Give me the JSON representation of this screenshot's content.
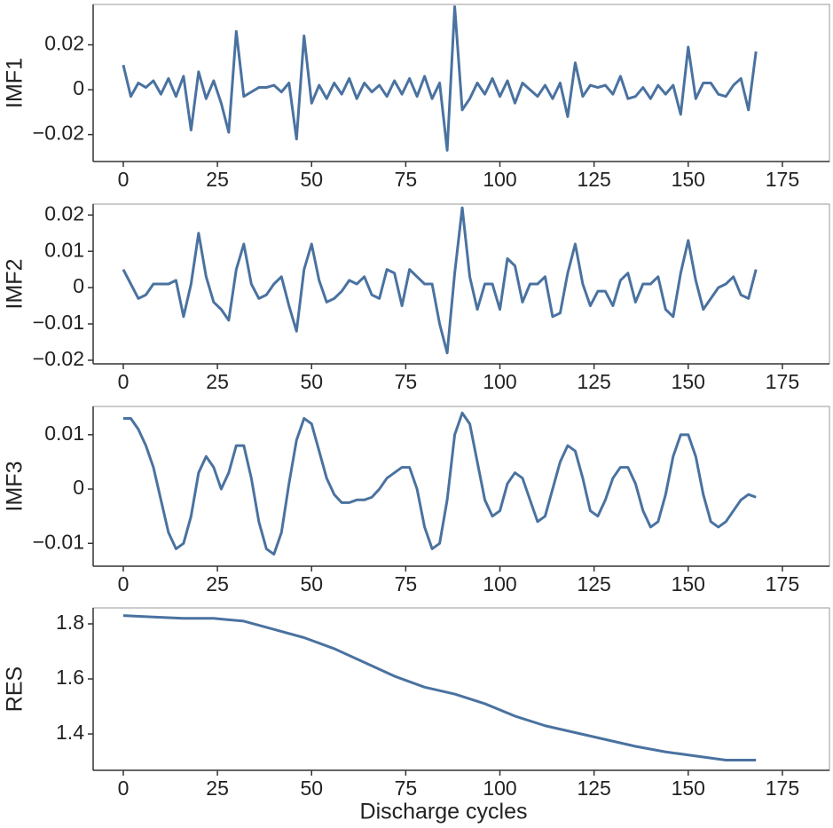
{
  "chart_data": [
    {
      "type": "line",
      "ylabel": "IMF1",
      "color": "#4a72a0",
      "x": [
        0,
        2,
        4,
        6,
        8,
        10,
        12,
        14,
        16,
        18,
        20,
        22,
        24,
        26,
        28,
        30,
        32,
        34,
        36,
        38,
        40,
        42,
        44,
        46,
        48,
        50,
        52,
        54,
        56,
        58,
        60,
        62,
        64,
        66,
        68,
        70,
        72,
        74,
        76,
        78,
        80,
        82,
        84,
        86,
        88,
        90,
        92,
        94,
        96,
        98,
        100,
        102,
        104,
        106,
        108,
        110,
        112,
        114,
        116,
        118,
        120,
        122,
        124,
        126,
        128,
        130,
        132,
        134,
        136,
        138,
        140,
        142,
        144,
        146,
        148,
        150,
        152,
        154,
        156,
        158,
        160,
        162,
        164,
        166,
        168
      ],
      "values": [
        0.011,
        -0.003,
        0.003,
        0.001,
        0.004,
        -0.002,
        0.005,
        -0.003,
        0.006,
        -0.018,
        0.008,
        -0.004,
        0.004,
        -0.006,
        -0.019,
        0.026,
        -0.003,
        -0.001,
        0.001,
        0.001,
        0.002,
        -0.001,
        0.003,
        -0.022,
        0.024,
        -0.006,
        0.002,
        -0.004,
        0.003,
        -0.002,
        0.005,
        -0.004,
        0.003,
        -0.001,
        0.002,
        -0.003,
        0.004,
        -0.002,
        0.005,
        -0.003,
        0.006,
        -0.004,
        0.003,
        -0.027,
        0.037,
        -0.009,
        -0.004,
        0.003,
        -0.002,
        0.005,
        -0.003,
        0.004,
        -0.006,
        0.003,
        0,
        -0.003,
        0.002,
        -0.004,
        0.003,
        -0.012,
        0.012,
        -0.003,
        0.002,
        0.001,
        0.002,
        -0.002,
        0.006,
        -0.004,
        -0.003,
        0.001,
        -0.004,
        0.002,
        -0.002,
        0.002,
        -0.011,
        0.019,
        -0.004,
        0.003,
        0.003,
        -0.002,
        -0.003,
        0.002,
        0.005,
        -0.009,
        0.017
      ],
      "xlim": [
        -8,
        187.5
      ],
      "xticks": [
        0,
        25,
        50,
        75,
        100,
        125,
        150,
        175
      ],
      "ylim": [
        -0.032,
        0.038
      ],
      "yticks": [
        {
          "value": -0.02,
          "label": "−0.02"
        },
        0,
        0.02
      ]
    },
    {
      "type": "line",
      "ylabel": "IMF2",
      "color": "#4a72a0",
      "x": [
        0,
        2,
        4,
        6,
        8,
        10,
        12,
        14,
        16,
        18,
        20,
        22,
        24,
        26,
        28,
        30,
        32,
        34,
        36,
        38,
        40,
        42,
        44,
        46,
        48,
        50,
        52,
        54,
        56,
        58,
        60,
        62,
        64,
        66,
        68,
        70,
        72,
        74,
        76,
        78,
        80,
        82,
        84,
        86,
        88,
        90,
        92,
        94,
        96,
        98,
        100,
        102,
        104,
        106,
        108,
        110,
        112,
        114,
        116,
        118,
        120,
        122,
        124,
        126,
        128,
        130,
        132,
        134,
        136,
        138,
        140,
        142,
        144,
        146,
        148,
        150,
        152,
        154,
        156,
        158,
        160,
        162,
        164,
        166,
        168
      ],
      "values": [
        0.005,
        0.001,
        -0.003,
        -0.002,
        0.001,
        0.001,
        0.001,
        0.002,
        -0.008,
        0.001,
        0.015,
        0.003,
        -0.004,
        -0.006,
        -0.009,
        0.005,
        0.012,
        0.001,
        -0.003,
        -0.002,
        0.001,
        0.003,
        -0.005,
        -0.012,
        0.005,
        0.012,
        0.002,
        -0.004,
        -0.003,
        -0.001,
        0.002,
        0.001,
        0.003,
        -0.002,
        -0.003,
        0.005,
        0.004,
        -0.005,
        0.005,
        0.003,
        0.001,
        0.001,
        -0.01,
        -0.018,
        0.004,
        0.022,
        0.003,
        -0.006,
        0.001,
        0.001,
        -0.006,
        0.008,
        0.006,
        -0.004,
        0.001,
        0.001,
        0.003,
        -0.008,
        -0.007,
        0.004,
        0.012,
        0.001,
        -0.005,
        -0.001,
        -0.001,
        -0.005,
        0.002,
        0.004,
        -0.004,
        0.001,
        0.001,
        0.003,
        -0.006,
        -0.008,
        0.004,
        0.013,
        0.002,
        -0.006,
        -0.003,
        0,
        0.001,
        0.003,
        -0.002,
        -0.003,
        0.005
      ],
      "xlim": [
        -8,
        187.5
      ],
      "xticks": [
        0,
        25,
        50,
        75,
        100,
        125,
        150,
        175
      ],
      "ylim": [
        -0.021,
        0.023
      ],
      "yticks": [
        {
          "value": -0.02,
          "label": "−0.02"
        },
        {
          "value": -0.01,
          "label": "−0.01"
        },
        0,
        0.01,
        0.02
      ]
    },
    {
      "type": "line",
      "ylabel": "IMF3",
      "color": "#4a72a0",
      "x": [
        0,
        2,
        4,
        6,
        8,
        10,
        12,
        14,
        16,
        18,
        20,
        22,
        24,
        26,
        28,
        30,
        32,
        34,
        36,
        38,
        40,
        42,
        44,
        46,
        48,
        50,
        52,
        54,
        56,
        58,
        60,
        62,
        64,
        66,
        68,
        70,
        72,
        74,
        76,
        78,
        80,
        82,
        84,
        86,
        88,
        90,
        92,
        94,
        96,
        98,
        100,
        102,
        104,
        106,
        108,
        110,
        112,
        114,
        116,
        118,
        120,
        122,
        124,
        126,
        128,
        130,
        132,
        134,
        136,
        138,
        140,
        142,
        144,
        146,
        148,
        150,
        152,
        154,
        156,
        158,
        160,
        162,
        164,
        166,
        168
      ],
      "values": [
        0.013,
        0.013,
        0.011,
        0.008,
        0.004,
        -0.002,
        -0.008,
        -0.011,
        -0.01,
        -0.005,
        0.003,
        0.006,
        0.004,
        0,
        0.003,
        0.008,
        0.008,
        0.002,
        -0.006,
        -0.011,
        -0.012,
        -0.008,
        0.001,
        0.009,
        0.013,
        0.012,
        0.007,
        0.002,
        -0.001,
        -0.0025,
        -0.0025,
        -0.002,
        -0.002,
        -0.0015,
        0,
        0.002,
        0.003,
        0.004,
        0.004,
        0,
        -0.007,
        -0.011,
        -0.01,
        -0.002,
        0.01,
        0.014,
        0.012,
        0.005,
        -0.002,
        -0.005,
        -0.004,
        0.001,
        0.003,
        0.002,
        -0.002,
        -0.006,
        -0.005,
        0,
        0.005,
        0.008,
        0.007,
        0.002,
        -0.004,
        -0.005,
        -0.002,
        0.002,
        0.004,
        0.004,
        0.001,
        -0.004,
        -0.007,
        -0.006,
        -0.001,
        0.006,
        0.01,
        0.01,
        0.006,
        -0.001,
        -0.006,
        -0.007,
        -0.006,
        -0.004,
        -0.002,
        -0.001,
        -0.0015
      ],
      "xlim": [
        -8,
        187.5
      ],
      "xticks": [
        0,
        25,
        50,
        75,
        100,
        125,
        150,
        175
      ],
      "ylim": [
        -0.0142,
        0.0152
      ],
      "yticks": [
        {
          "value": -0.01,
          "label": "−0.01"
        },
        0,
        0.01
      ]
    },
    {
      "type": "line",
      "ylabel": "RES",
      "xlabel": "Discharge cycles",
      "color": "#4a72a0",
      "x": [
        0,
        8,
        16,
        24,
        32,
        40,
        48,
        56,
        64,
        72,
        80,
        88,
        96,
        104,
        112,
        120,
        128,
        136,
        144,
        152,
        160,
        168
      ],
      "values": [
        1.83,
        1.825,
        1.82,
        1.82,
        1.81,
        1.78,
        1.75,
        1.71,
        1.66,
        1.61,
        1.57,
        1.545,
        1.51,
        1.465,
        1.43,
        1.405,
        1.38,
        1.355,
        1.335,
        1.32,
        1.305,
        1.305
      ],
      "xlim": [
        -8,
        187.5
      ],
      "xticks": [
        0,
        25,
        50,
        75,
        100,
        125,
        150,
        175
      ],
      "ylim": [
        1.268,
        1.858
      ],
      "yticks": [
        1.4,
        1.6,
        1.8
      ]
    }
  ]
}
